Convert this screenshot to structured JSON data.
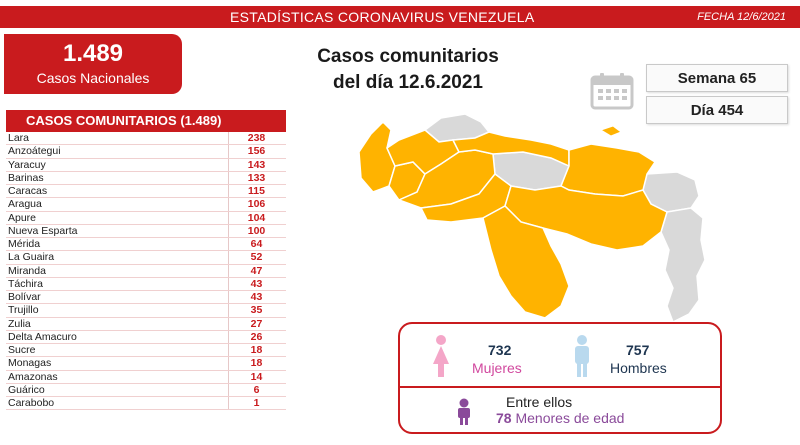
{
  "header": {
    "title": "ESTADÍSTICAS CORONAVIRUS VENEZUELA",
    "date": "FECHA 12/6/2021"
  },
  "national": {
    "count": "1.489",
    "label": "Casos Nacionales"
  },
  "headline": {
    "line1": "Casos comunitarios",
    "line2": "del día 12.6.2021"
  },
  "side": {
    "week": "Semana 65",
    "day": "Día 454"
  },
  "table": {
    "header": "CASOS COMUNITARIOS (1.489)",
    "rows": [
      {
        "state": "Lara",
        "value": "238"
      },
      {
        "state": "Anzoátegui",
        "value": "156"
      },
      {
        "state": "Yaracuy",
        "value": "143"
      },
      {
        "state": "Barinas",
        "value": "133"
      },
      {
        "state": "Caracas",
        "value": "115"
      },
      {
        "state": "Aragua",
        "value": "106"
      },
      {
        "state": "Apure",
        "value": "104"
      },
      {
        "state": "Nueva Esparta",
        "value": "100"
      },
      {
        "state": "Mérida",
        "value": "64"
      },
      {
        "state": "La Guaira",
        "value": "52"
      },
      {
        "state": "Miranda",
        "value": "47"
      },
      {
        "state": "Táchira",
        "value": "43"
      },
      {
        "state": "Bolívar",
        "value": "43"
      },
      {
        "state": "Trujillo",
        "value": "35"
      },
      {
        "state": "Zulia",
        "value": "27"
      },
      {
        "state": "Delta Amacuro",
        "value": "26"
      },
      {
        "state": "Sucre",
        "value": "18"
      },
      {
        "state": "Monagas",
        "value": "18"
      },
      {
        "state": "Amazonas",
        "value": "14"
      },
      {
        "state": "Guárico",
        "value": "6"
      },
      {
        "state": "Carabobo",
        "value": "1"
      }
    ]
  },
  "gender": {
    "women_count": "732",
    "women_label": "Mujeres",
    "men_count": "757",
    "men_label": "Hombres",
    "kids_intro": "Entre ellos",
    "kids_count": "78",
    "kids_label": "Menores de edad"
  },
  "colors": {
    "brand_red": "#c91b1e",
    "map_affected": "#ffb300",
    "map_unaffected": "#d9d9d9",
    "women_pink": "#f4a6c8",
    "men_blue": "#b9d9ee",
    "kids_purple": "#8a4a9a"
  },
  "icons": {
    "calendar": "calendar-icon",
    "woman": "woman-icon",
    "man": "man-icon",
    "child": "child-icon"
  }
}
